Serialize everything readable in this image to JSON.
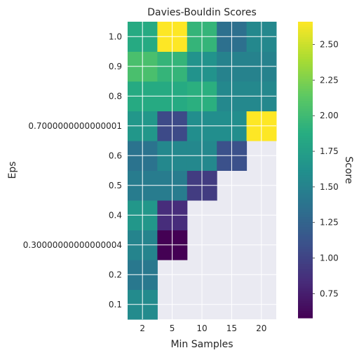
{
  "chart_data": {
    "type": "heatmap",
    "title": "Davies-Bouldin Scores",
    "xlabel": "Min Samples",
    "ylabel": "Eps",
    "x_categories": [
      "2",
      "5",
      "10",
      "15",
      "20"
    ],
    "y_categories": [
      "0.1",
      "0.2",
      "0.30000000000000004",
      "0.4",
      "0.5",
      "0.6",
      "0.7000000000000001",
      "0.8",
      "0.9",
      "1.0"
    ],
    "values": [
      [
        1.58,
        null,
        null,
        null,
        null
      ],
      [
        1.42,
        null,
        null,
        null,
        null
      ],
      [
        1.52,
        0.58,
        null,
        null,
        null
      ],
      [
        1.68,
        0.85,
        null,
        null,
        null
      ],
      [
        1.45,
        1.45,
        0.95,
        null,
        null
      ],
      [
        1.38,
        1.55,
        1.55,
        1.1,
        null
      ],
      [
        1.68,
        1.05,
        1.6,
        1.6,
        2.7
      ],
      [
        1.85,
        1.85,
        1.9,
        1.55,
        1.55
      ],
      [
        2.05,
        1.95,
        1.65,
        1.5,
        1.5
      ],
      [
        1.85,
        2.7,
        1.95,
        1.35,
        1.55
      ]
    ],
    "missing_color": "#eaeaf2",
    "colormap": "viridis",
    "colorbar": {
      "label": "Score",
      "vmin": 0.58,
      "vmax": 2.66,
      "ticks": [
        "0.75",
        "1.00",
        "1.25",
        "1.50",
        "1.75",
        "2.00",
        "2.25",
        "2.50"
      ]
    },
    "grid": true
  }
}
